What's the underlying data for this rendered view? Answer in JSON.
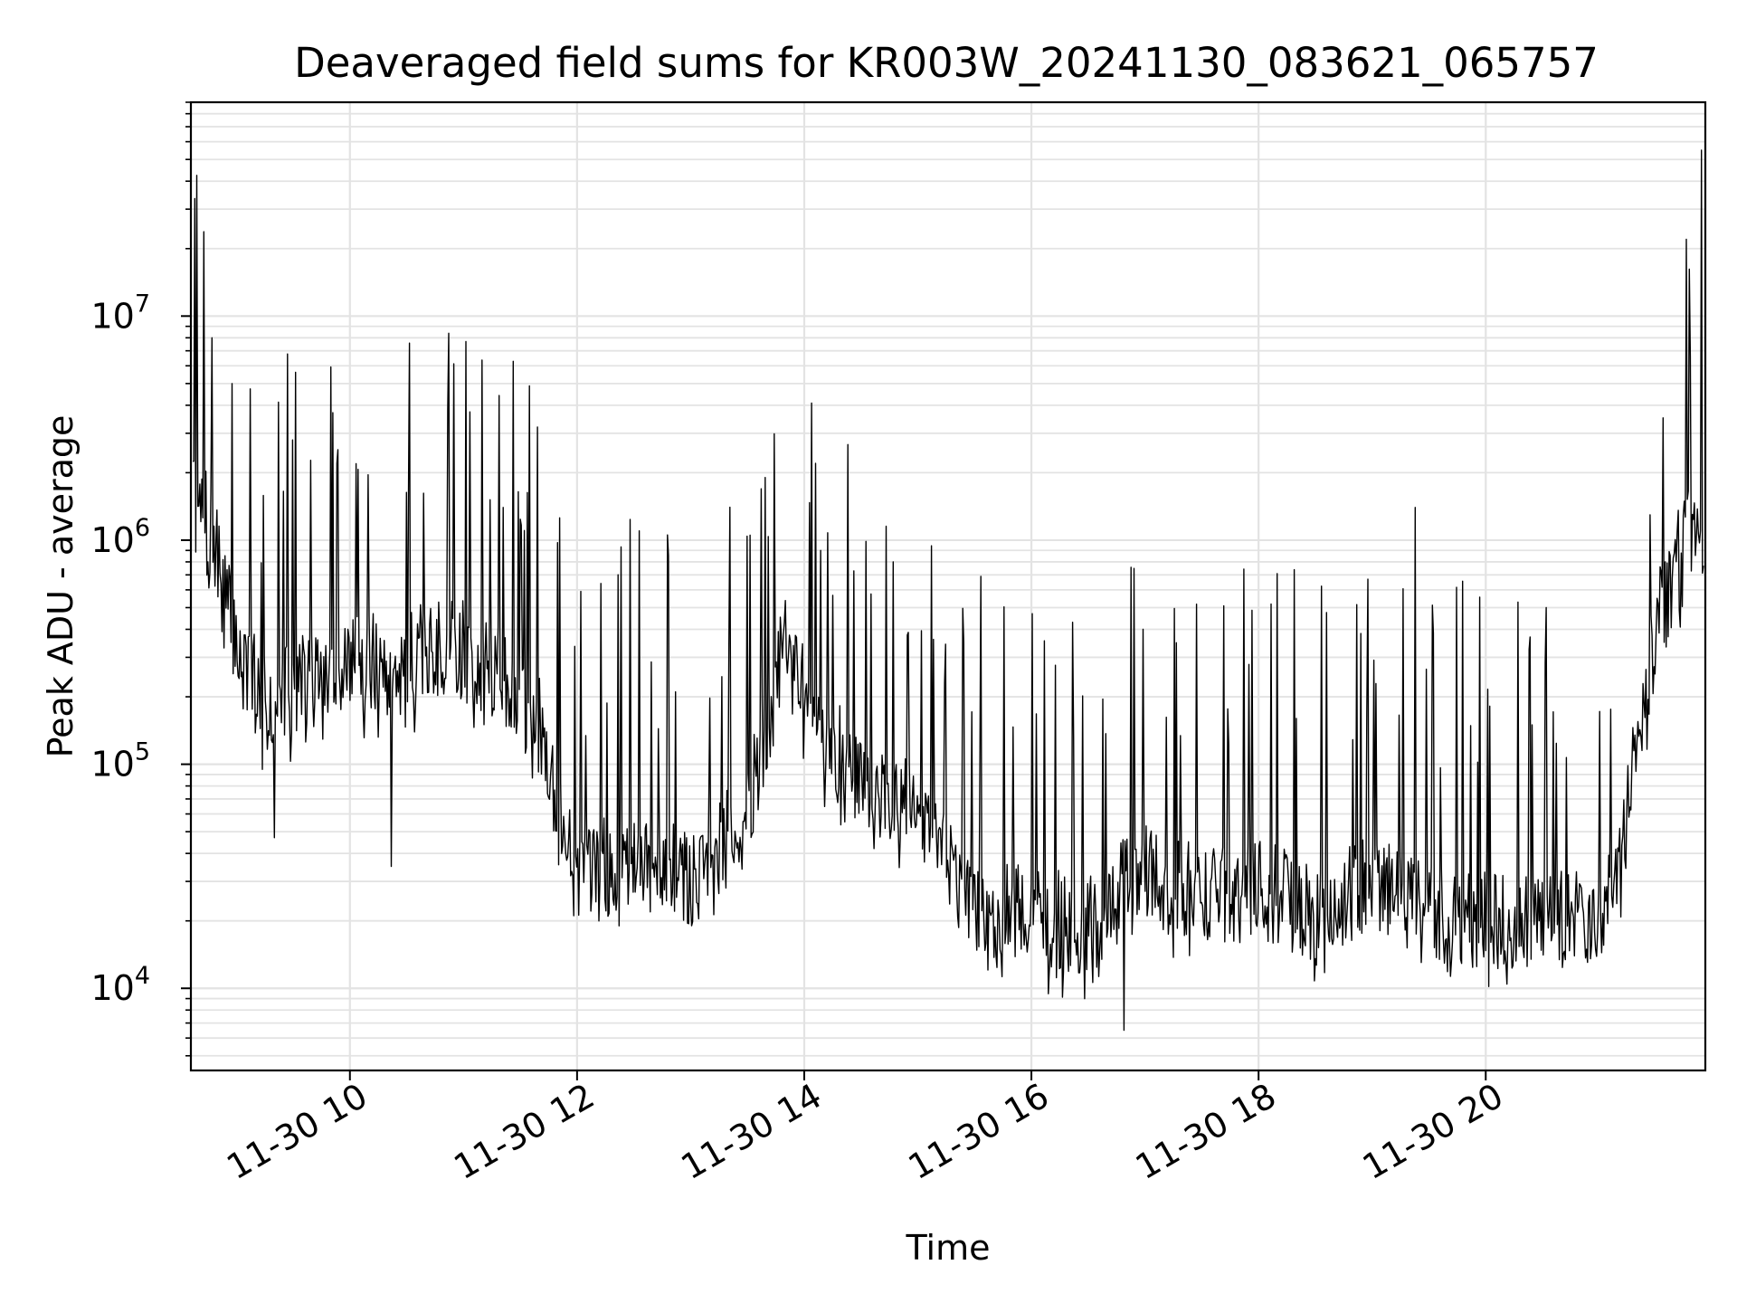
{
  "chart_data": {
    "type": "line",
    "title": "Deaveraged field sums for KR003W_20241130_083621_065757",
    "xlabel": "Time",
    "ylabel": "Peak ADU - average",
    "y_scale": "log",
    "ylim": [
      4300,
      90000000
    ],
    "xlim": [
      "2024-11-30T08:36",
      "2024-11-30T21:56"
    ],
    "x_ticks": [
      "2024-11-30T10:00",
      "2024-11-30T12:00",
      "2024-11-30T14:00",
      "2024-11-30T16:00",
      "2024-11-30T18:00",
      "2024-11-30T20:00"
    ],
    "x_tick_labels": [
      "11-30 10",
      "11-30 12",
      "11-30 14",
      "11-30 16",
      "11-30 18",
      "11-30 20"
    ],
    "y_ticks": [
      10000,
      100000,
      1000000,
      10000000
    ],
    "y_tick_labels": [
      {
        "base": "10",
        "exp": "4"
      },
      {
        "base": "10",
        "exp": "5"
      },
      {
        "base": "10",
        "exp": "6"
      },
      {
        "base": "10",
        "exp": "7"
      }
    ],
    "grid": true,
    "line_color": "#000000",
    "series": [
      {
        "x": [
          "2024-11-30T08:36",
          "2024-11-30T08:45",
          "2024-11-30T08:50",
          "2024-11-30T09:00",
          "2024-11-30T09:15",
          "2024-11-30T09:30",
          "2024-11-30T10:00",
          "2024-11-30T10:30",
          "2024-11-30T11:00",
          "2024-11-30T11:20",
          "2024-11-30T11:40",
          "2024-11-30T12:00",
          "2024-11-30T12:30",
          "2024-11-30T13:00",
          "2024-11-30T13:30",
          "2024-11-30T13:50",
          "2024-11-30T14:00",
          "2024-11-30T14:30",
          "2024-11-30T15:00",
          "2024-11-30T15:30",
          "2024-11-30T16:00",
          "2024-11-30T16:30",
          "2024-11-30T17:00",
          "2024-11-30T17:30",
          "2024-11-30T18:00",
          "2024-11-30T18:30",
          "2024-11-30T19:00",
          "2024-11-30T19:30",
          "2024-11-30T20:00",
          "2024-11-30T20:30",
          "2024-11-30T21:00",
          "2024-11-30T21:10",
          "2024-11-30T21:20",
          "2024-11-30T21:30",
          "2024-11-30T21:45",
          "2024-11-30T21:56"
        ],
        "values": [
          1500000,
          1200000,
          800000,
          350000,
          180000,
          230000,
          280000,
          300000,
          330000,
          250000,
          150000,
          30000,
          40000,
          30000,
          60000,
          350000,
          200000,
          80000,
          70000,
          22000,
          21000,
          19000,
          35000,
          26000,
          28000,
          22000,
          30000,
          22000,
          20000,
          20000,
          20000,
          30000,
          150000,
          400000,
          1000000,
          1000000
        ],
        "peaks": [
          {
            "x": "2024-11-30T08:47",
            "value": 8000000
          },
          {
            "x": "2024-11-30T08:58",
            "value": 5000000
          },
          {
            "x": "2024-11-30T09:53",
            "value": 2200000
          },
          {
            "x": "2024-11-30T11:21",
            "value": 1400000
          },
          {
            "x": "2024-11-30T19:23",
            "value": 1400000
          },
          {
            "x": "2024-11-30T21:46",
            "value": 22000000
          },
          {
            "x": "2024-11-30T21:54",
            "value": 55000000
          }
        ],
        "troughs": [
          {
            "x": "2024-11-30T09:20",
            "value": 47000.0
          },
          {
            "x": "2024-11-30T10:22",
            "value": 35000
          },
          {
            "x": "2024-11-30T16:49",
            "value": 6500
          }
        ]
      }
    ]
  }
}
